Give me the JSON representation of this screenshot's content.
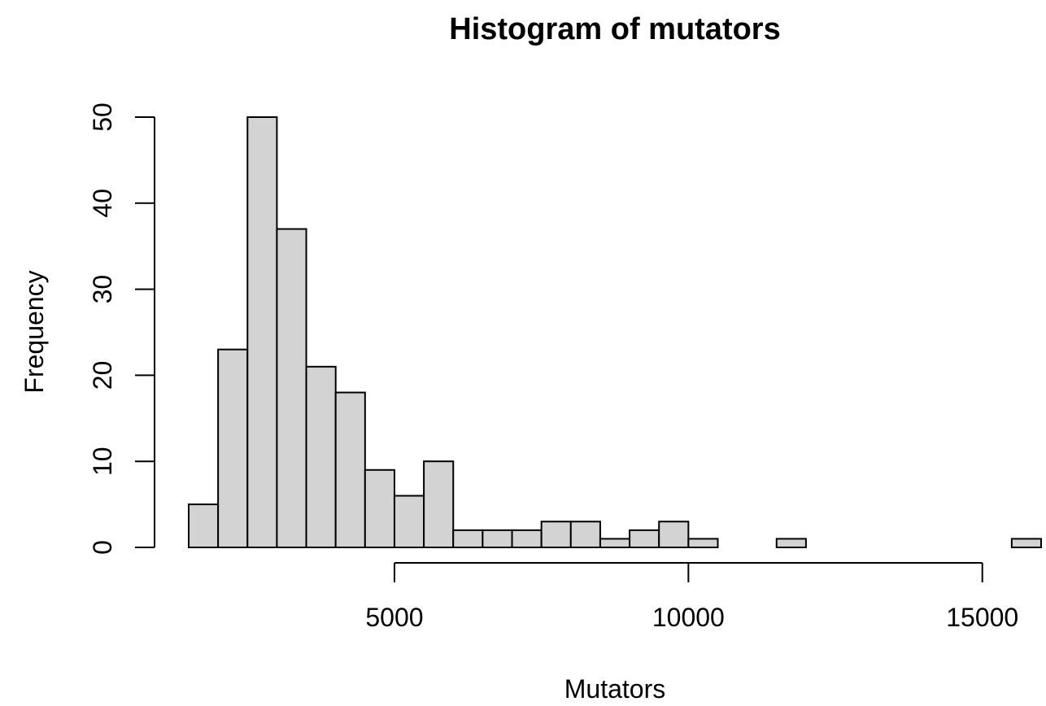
{
  "chart_data": {
    "type": "bar",
    "title": "Histogram of mutators",
    "xlabel": "Mutators",
    "ylabel": "Frequency",
    "bin_width": 500,
    "bins": [
      {
        "start": 1500,
        "end": 2000,
        "count": 5
      },
      {
        "start": 2000,
        "end": 2500,
        "count": 23
      },
      {
        "start": 2500,
        "end": 3000,
        "count": 50
      },
      {
        "start": 3000,
        "end": 3500,
        "count": 37
      },
      {
        "start": 3500,
        "end": 4000,
        "count": 21
      },
      {
        "start": 4000,
        "end": 4500,
        "count": 18
      },
      {
        "start": 4500,
        "end": 5000,
        "count": 9
      },
      {
        "start": 5000,
        "end": 5500,
        "count": 6
      },
      {
        "start": 5500,
        "end": 6000,
        "count": 10
      },
      {
        "start": 6000,
        "end": 6500,
        "count": 2
      },
      {
        "start": 6500,
        "end": 7000,
        "count": 2
      },
      {
        "start": 7000,
        "end": 7500,
        "count": 2
      },
      {
        "start": 7500,
        "end": 8000,
        "count": 3
      },
      {
        "start": 8000,
        "end": 8500,
        "count": 3
      },
      {
        "start": 8500,
        "end": 9000,
        "count": 1
      },
      {
        "start": 9000,
        "end": 9500,
        "count": 2
      },
      {
        "start": 9500,
        "end": 10000,
        "count": 3
      },
      {
        "start": 10000,
        "end": 10500,
        "count": 1
      },
      {
        "start": 10500,
        "end": 11000,
        "count": 0
      },
      {
        "start": 11000,
        "end": 11500,
        "count": 0
      },
      {
        "start": 11500,
        "end": 12000,
        "count": 1
      },
      {
        "start": 12000,
        "end": 12500,
        "count": 0
      },
      {
        "start": 12500,
        "end": 13000,
        "count": 0
      },
      {
        "start": 13000,
        "end": 13500,
        "count": 0
      },
      {
        "start": 13500,
        "end": 14000,
        "count": 0
      },
      {
        "start": 14000,
        "end": 14500,
        "count": 0
      },
      {
        "start": 14500,
        "end": 15000,
        "count": 0
      },
      {
        "start": 15000,
        "end": 15500,
        "count": 0
      },
      {
        "start": 15500,
        "end": 16000,
        "count": 1
      }
    ],
    "xlim": [
      1500,
      16000
    ],
    "ylim": [
      0,
      50
    ],
    "x_ticks": [
      5000,
      10000,
      15000
    ],
    "y_ticks": [
      0,
      10,
      20,
      30,
      40,
      50
    ],
    "bar_color": "#d3d3d3",
    "border_color": "#000000",
    "grid": false,
    "legend": "none"
  }
}
